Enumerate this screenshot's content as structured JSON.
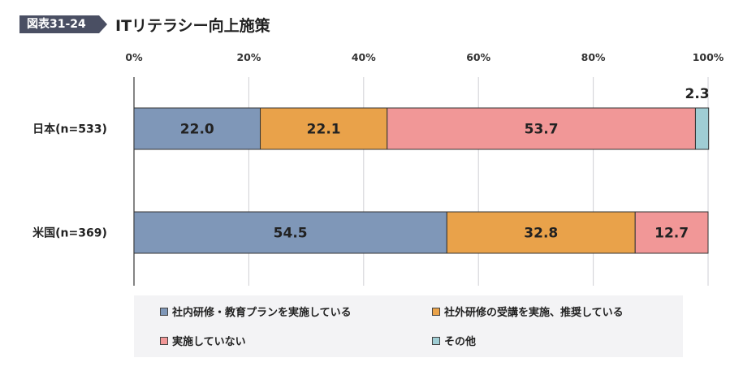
{
  "header": {
    "figure_no": "図表31-24",
    "title": "ITリテラシー向上施策"
  },
  "colors": {
    "badge": "#4a4f63",
    "series": [
      "#7f97b8",
      "#e9a24a",
      "#f19797",
      "#9fcdd4"
    ]
  },
  "chart_data": {
    "type": "bar",
    "orientation": "horizontal",
    "stacked": true,
    "title": "",
    "xlabel": "",
    "ylabel": "",
    "xlim": [
      0,
      100
    ],
    "x_ticks": [
      "0%",
      "20%",
      "40%",
      "60%",
      "80%",
      "100%"
    ],
    "grid": true,
    "legend_position": "bottom",
    "categories": [
      "日本(n=533)",
      "米国(n=369)"
    ],
    "series": [
      {
        "name": "社内研修・教育プランを実施している",
        "values": [
          22.0,
          54.5
        ],
        "labels": [
          "22.0",
          "54.5"
        ]
      },
      {
        "name": "社外研修の受講を実施、推奨している",
        "values": [
          22.1,
          32.8
        ],
        "labels": [
          "22.1",
          "32.8"
        ]
      },
      {
        "name": "実施していない",
        "values": [
          53.7,
          12.7
        ],
        "labels": [
          "53.7",
          "12.7"
        ]
      },
      {
        "name": "その他",
        "values": [
          2.3,
          0
        ],
        "labels": [
          "2.3",
          ""
        ]
      }
    ]
  }
}
